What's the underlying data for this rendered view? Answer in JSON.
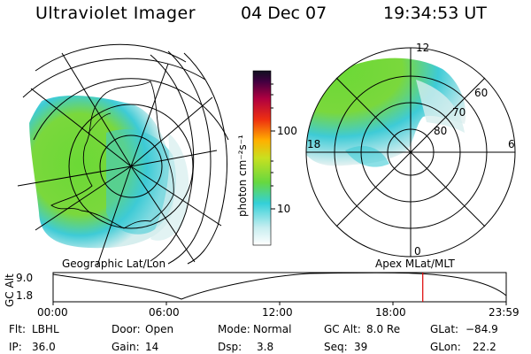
{
  "header": {
    "title": "Ultraviolet Imager",
    "date": "04 Dec 07",
    "time": "19:34:53 UT"
  },
  "colorbar": {
    "unit": "photon cm⁻²s⁻¹",
    "ticks": [
      "100",
      "10"
    ]
  },
  "polar": {
    "labels": [
      "12",
      "60",
      "70",
      "80",
      "18",
      "6",
      "0"
    ]
  },
  "footers": {
    "left": "Geographic Lat/Lon",
    "right": "Apex MLat/MLT"
  },
  "timeline": {
    "axis_label": "GC Alt",
    "y_ticks": [
      "9.0",
      "1.8"
    ],
    "x_ticks": [
      "00:00",
      "06:00",
      "12:00",
      "18:00",
      "23:59"
    ],
    "current_time_hours": 19.58
  },
  "info": {
    "flt_label": "Flt:",
    "flt_value": "LBHL",
    "ip_label": "IP:",
    "ip_value": "36.0",
    "door_label": "Door:",
    "door_value": "Open",
    "gain_label": "Gain:",
    "gain_value": "14",
    "mode_label": "Mode:",
    "mode_value": "Normal",
    "dsp_label": "Dsp:",
    "dsp_value": "3.8",
    "gcalt_label": "GC Alt:",
    "gcalt_value": "8.0 Re",
    "seq_label": "Seq:",
    "seq_value": "39",
    "glat_label": "GLat:",
    "glat_value": "−84.9",
    "glon_label": "GLon:",
    "glon_value": "22.2"
  },
  "colors": {
    "current_time_marker": "#dd0000",
    "aurora_main": "#66dd33",
    "aurora_edge": "#33ccdd"
  }
}
